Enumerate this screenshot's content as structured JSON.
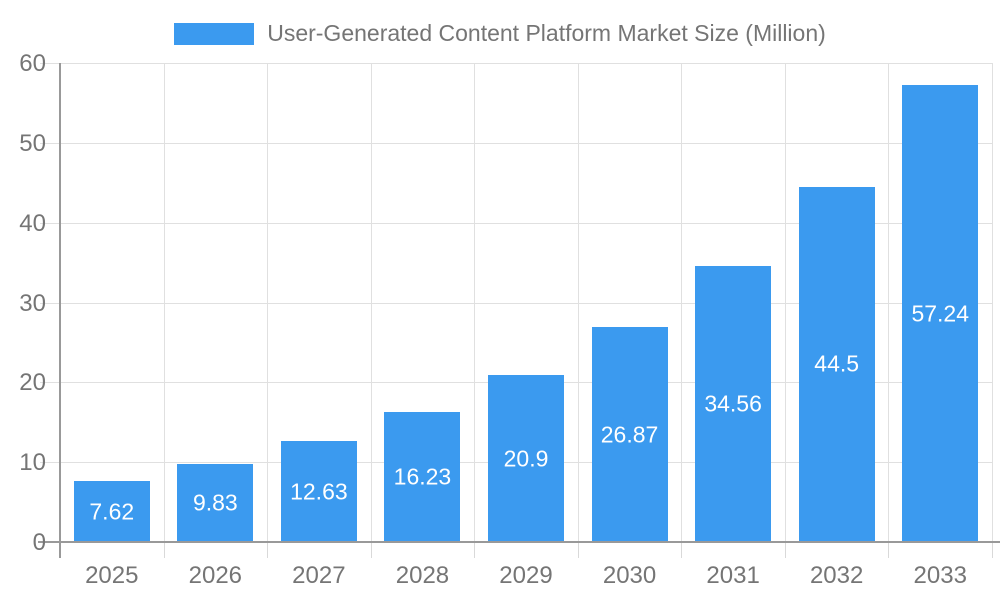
{
  "legend": {
    "position": "top-center"
  },
  "chart_data": {
    "type": "bar",
    "title": "User-Generated Content Platform Market Size (Million)",
    "categories": [
      "2025",
      "2026",
      "2027",
      "2028",
      "2029",
      "2030",
      "2031",
      "2032",
      "2033"
    ],
    "values": [
      7.62,
      9.83,
      12.63,
      16.23,
      20.9,
      26.87,
      34.56,
      44.5,
      57.24
    ],
    "value_labels": [
      "7.62",
      "9.83",
      "12.63",
      "16.23",
      "20.9",
      "26.87",
      "34.56",
      "44.5",
      "57.24"
    ],
    "value_label_position": "inside-center",
    "xlabel": "",
    "ylabel": "",
    "ylim": [
      0,
      60
    ],
    "yticks": [
      0,
      10,
      20,
      30,
      40,
      50,
      60
    ],
    "grid": true,
    "legend_position": "top-center"
  },
  "colors": {
    "bar": "#3B9AEF",
    "axis_line": "#999999",
    "grid_line": "#E0E0E0",
    "tick_line": "#D9D9D9",
    "axis_label_text": "#757575",
    "legend_text": "#757575",
    "value_label_text": "#FFFFFF",
    "background": "#FFFFFF"
  }
}
